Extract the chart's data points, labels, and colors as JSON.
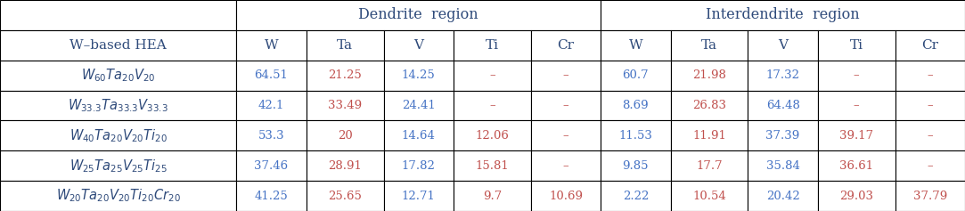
{
  "title_dendrite": "Dendrite  region",
  "title_interdendrite": "Interdendrite  region",
  "rows": [
    {
      "label": "$W_{60}Ta_{20}V_{20}$",
      "dendrite": [
        "64.51",
        "21.25",
        "14.25",
        "–",
        "–"
      ],
      "interdendrite": [
        "60.7",
        "21.98",
        "17.32",
        "–",
        "–"
      ]
    },
    {
      "label": "$W_{33.3}Ta_{33.3}V_{33.3}$",
      "dendrite": [
        "42.1",
        "33.49",
        "24.41",
        "–",
        "–"
      ],
      "interdendrite": [
        "8.69",
        "26.83",
        "64.48",
        "–",
        "–"
      ]
    },
    {
      "label": "$W_{40}Ta_{20}V_{20}Ti_{20}$",
      "dendrite": [
        "53.3",
        "20",
        "14.64",
        "12.06",
        "–"
      ],
      "interdendrite": [
        "11.53",
        "11.91",
        "37.39",
        "39.17",
        "–"
      ]
    },
    {
      "label": "$W_{25}Ta_{25}V_{25}Ti_{25}$",
      "dendrite": [
        "37.46",
        "28.91",
        "17.82",
        "15.81",
        "–"
      ],
      "interdendrite": [
        "9.85",
        "17.7",
        "35.84",
        "36.61",
        "–"
      ]
    },
    {
      "label": "$W_{20}Ta_{20}V_{20}Ti_{20}Cr_{20}$",
      "dendrite": [
        "41.25",
        "25.65",
        "12.71",
        "9.7",
        "10.69"
      ],
      "interdendrite": [
        "2.22",
        "10.54",
        "20.42",
        "29.03",
        "37.79"
      ]
    }
  ],
  "col_header_label": "W–based HEA",
  "col_headers": [
    "W",
    "Ta",
    "V",
    "Ti",
    "Cr",
    "W",
    "Ta",
    "V",
    "Ti",
    "Cr"
  ],
  "bg_color": "#ffffff",
  "border_color": "#000000",
  "label_color": "#2e4a7a",
  "header_label_color": "#2e4a7a",
  "col_header_color": "#2e4a7a",
  "data_colors": [
    "#4472c4",
    "#c0504d",
    "#4472c4",
    "#c0504d",
    "#c0504d"
  ],
  "inter_data_colors": [
    "#4472c4",
    "#c0504d",
    "#4472c4",
    "#c0504d",
    "#c0504d"
  ],
  "dash_color": "#c0504d",
  "group_header_color": "#2e4a7a",
  "lw": 0.8,
  "figw": 10.83,
  "figh": 2.37,
  "dpi": 100,
  "col_widths_raw": [
    2.2,
    0.65,
    0.72,
    0.65,
    0.72,
    0.65,
    0.65,
    0.72,
    0.65,
    0.72,
    0.65
  ],
  "n_rows": 7,
  "fontsize_group": 11.5,
  "fontsize_header": 11.0,
  "fontsize_data": 9.5,
  "fontsize_label": 10.5
}
